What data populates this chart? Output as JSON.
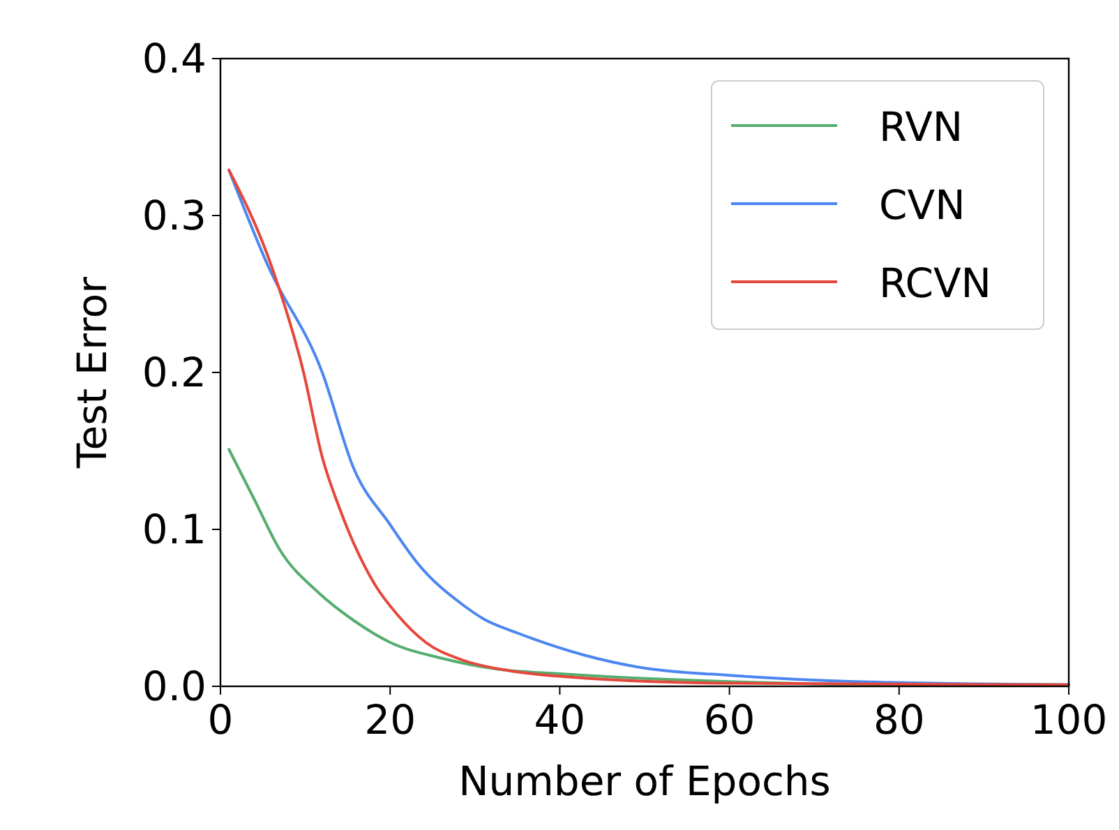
{
  "chart_data": {
    "type": "line",
    "xlabel": "Number of Epochs",
    "ylabel": "Test Error",
    "xlim": [
      0,
      100
    ],
    "xticks": [
      0,
      20,
      40,
      60,
      80,
      100
    ],
    "ylim": [
      0,
      0.4
    ],
    "yticks": [
      {
        "value": 0,
        "label": "0.0"
      },
      0.1,
      0.2,
      0.3,
      0.4
    ],
    "legend": "top right",
    "grid": false,
    "marker": "none",
    "line_style": "solid",
    "series": [
      {
        "name": "RVN",
        "color": "#55ad6f",
        "x": [
          1,
          4,
          7,
          11.5,
          15.7,
          20,
          26,
          32.6,
          40,
          50,
          60,
          80,
          100
        ],
        "values": [
          0.151,
          0.119,
          0.087,
          0.06,
          0.042,
          0.028,
          0.018,
          0.011,
          0.008,
          0.005,
          0.003,
          0.001,
          0.001
        ]
      },
      {
        "name": "CVN",
        "color": "#4c86f0",
        "x": [
          1,
          5.6,
          12,
          15.7,
          20,
          23.3,
          28.8,
          31,
          35,
          42.8,
          49.5,
          60,
          75,
          100
        ],
        "values": [
          0.329,
          0.268,
          0.2,
          0.139,
          0.103,
          0.078,
          0.051,
          0.043,
          0.034,
          0.02,
          0.012,
          0.007,
          0.003,
          0.001
        ]
      },
      {
        "name": "RCVN",
        "color": "#e6473b",
        "x": [
          1,
          6,
          9.8,
          12,
          14,
          18.3,
          20.8,
          24.2,
          28.4,
          34,
          41,
          60,
          100
        ],
        "values": [
          0.329,
          0.268,
          0.2,
          0.146,
          0.114,
          0.064,
          0.046,
          0.028,
          0.017,
          0.01,
          0.006,
          0.002,
          0.001
        ]
      }
    ]
  }
}
